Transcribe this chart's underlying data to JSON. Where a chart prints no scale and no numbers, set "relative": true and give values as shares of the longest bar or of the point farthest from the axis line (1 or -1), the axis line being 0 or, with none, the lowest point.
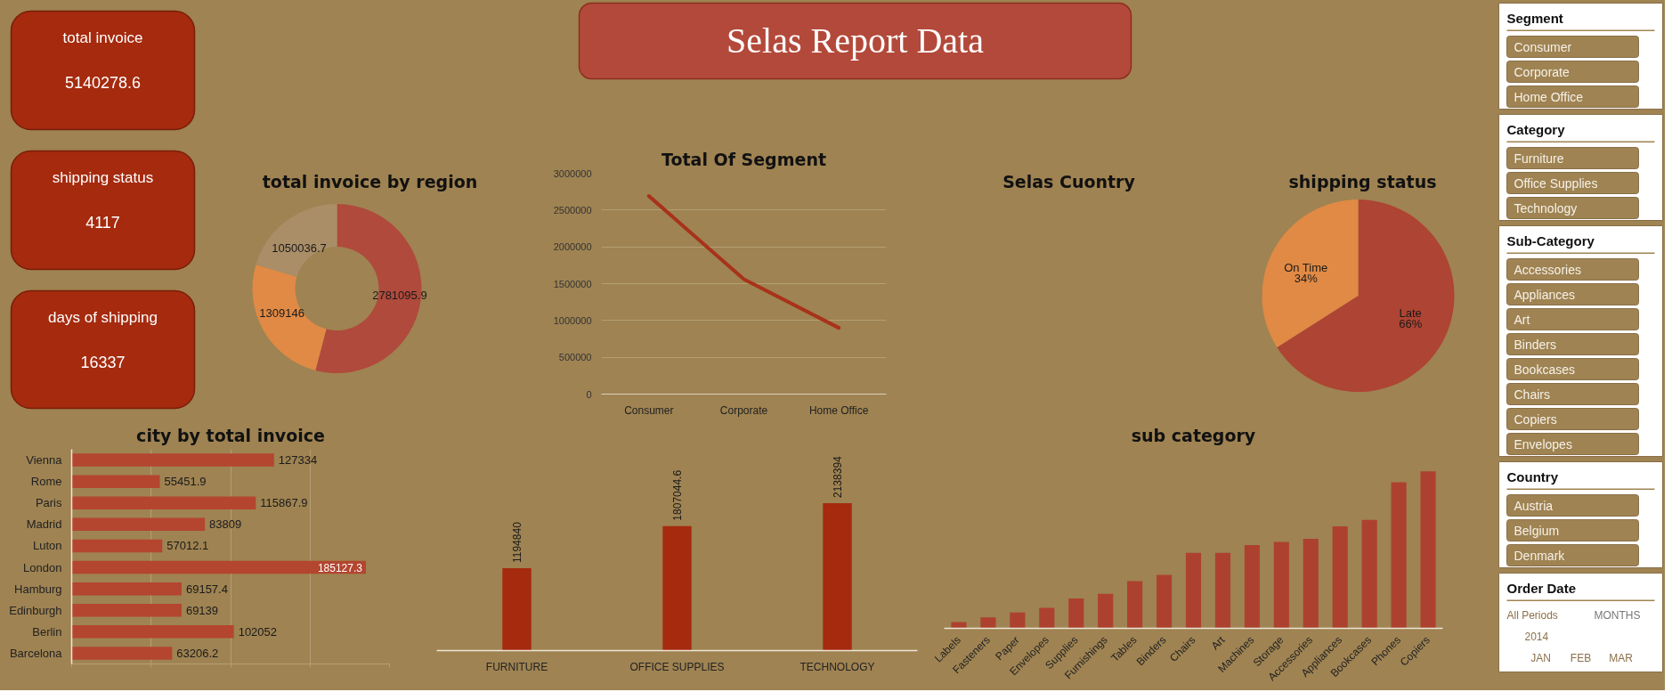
{
  "chart_data": [
    {
      "type": "other",
      "title": "total invoice",
      "annotations": [
        "5140278.6"
      ]
    },
    {
      "type": "other",
      "title": "Selas Report Data"
    },
    {
      "type": "other",
      "title": "shipping status",
      "annotations": [
        "4117"
      ]
    },
    {
      "type": "other",
      "title": "days of shipping",
      "annotations": [
        "16337"
      ]
    },
    {
      "type": "donut",
      "title": "total invoice by region",
      "categories": [
        null,
        null,
        null
      ],
      "values": [
        2781095.9,
        1309146,
        1050036.7
      ],
      "colors": [
        "#b04a3c",
        "#e08a45",
        "#aa8e68"
      ],
      "data_labels": true
    },
    {
      "type": "line",
      "title": "Total Of Segment",
      "categories": [
        "Consumer",
        "Corporate",
        "Home Office"
      ],
      "values": [
        2690000,
        1560000,
        900000
      ],
      "color": "#a8321a",
      "ylim": [
        0,
        3000000
      ],
      "yticks": [
        0,
        500000,
        1000000,
        1500000,
        2000000,
        2500000,
        3000000
      ],
      "grid": "y"
    },
    {
      "type": "other",
      "title": "Selas Cuontry"
    },
    {
      "type": "pie",
      "title": "shipping status",
      "categories": [
        "Late",
        "On Time"
      ],
      "values": [
        66,
        34
      ],
      "colors": [
        "#ae4433",
        "#e08a45"
      ],
      "value_labels": [
        "66%",
        "34%"
      ]
    },
    {
      "type": "bar",
      "orientation": "horizontal",
      "title": "city by total invoice",
      "categories": [
        "Vienna",
        "Rome",
        "Paris",
        "Madrid",
        "Luton",
        "London",
        "Hamburg",
        "Edinburgh",
        "Berlin",
        "Barcelona"
      ],
      "values": [
        127334,
        55451.9,
        115867.9,
        83809,
        57012.1,
        185127.3,
        69157.4,
        69139,
        102052,
        63206.2
      ],
      "color": "#b4452f",
      "xlim": [
        0,
        200000
      ],
      "xticks": [
        {
          "value": 0,
          "label": null
        },
        {
          "value": 50000,
          "label": null
        },
        {
          "value": 100000,
          "label": null
        },
        {
          "value": 150000,
          "label": null
        },
        {
          "value": 200000,
          "label": null
        }
      ],
      "grid": "x",
      "tick_labels": "y",
      "data_labels": true
    },
    {
      "type": "bar",
      "categories": [
        "FURNITURE",
        "OFFICE SUPPLIES",
        "TECHNOLOGY"
      ],
      "values": [
        1194840,
        1807044.6,
        2138394
      ],
      "color": "#a52a0e",
      "data_labels": true,
      "tick_labels": "x"
    },
    {
      "type": "bar",
      "title": "sub category",
      "relative": true,
      "categories": [
        "Labels",
        "Fasteners",
        "Paper",
        "Envelopes",
        "Supplies",
        "Furnishings",
        "Tables",
        "Binders",
        "Chairs",
        "Art",
        "Machines",
        "Storage",
        "Accessories",
        "Appliances",
        "Bookcases",
        "Phones",
        "Copiers"
      ],
      "values": [
        0.04,
        0.07,
        0.1,
        0.13,
        0.19,
        0.22,
        0.3,
        0.34,
        0.48,
        0.48,
        0.53,
        0.55,
        0.57,
        0.65,
        0.69,
        0.93,
        1
      ],
      "color": "#ad4130",
      "tick_labels": "x"
    },
    {
      "type": "other",
      "title": "Segment",
      "annotations": [
        "Consumer",
        "Corporate",
        "Home Office"
      ]
    },
    {
      "type": "other",
      "title": "Category",
      "annotations": [
        "Furniture",
        "Office Supplies",
        "Technology"
      ]
    },
    {
      "type": "other",
      "title": "Sub-Category",
      "annotations": [
        "Accessories",
        "Appliances",
        "Art",
        "Binders",
        "Bookcases",
        "Chairs",
        "Copiers",
        "Envelopes"
      ]
    },
    {
      "type": "other",
      "title": "Country",
      "annotations": [
        "Austria",
        "Belgium",
        "Denmark"
      ]
    },
    {
      "type": "other",
      "title": "Order Date",
      "annotations": [
        "All Periods",
        "MONTHS",
        "2014",
        "JAN",
        "FEB",
        "MAR"
      ]
    }
  ]
}
